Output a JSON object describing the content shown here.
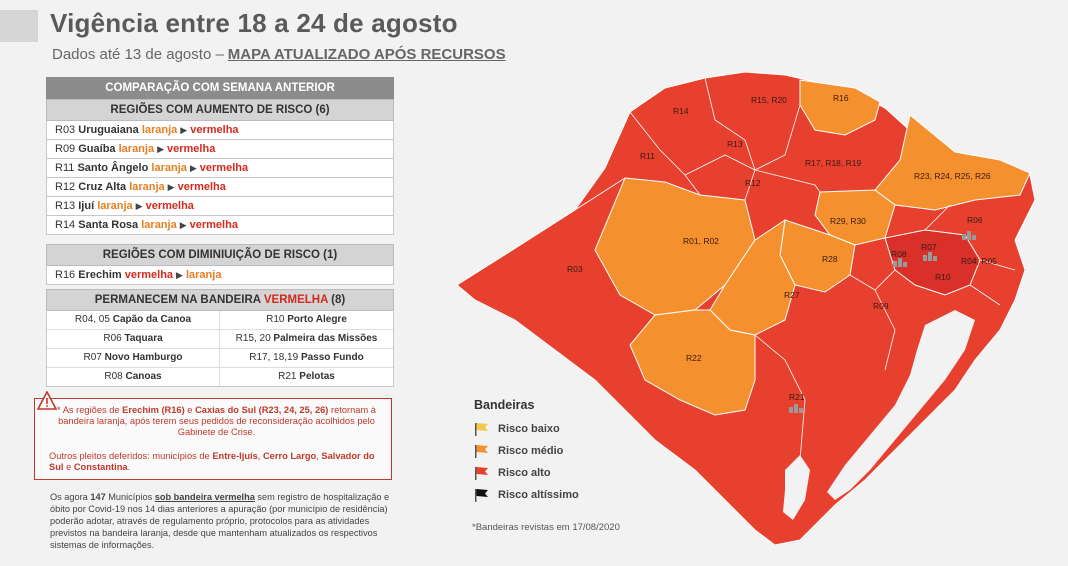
{
  "title": "Vigência entre 18 a 24 de agosto",
  "subtitle": {
    "prefix": "Dados até 13 de agosto –",
    "link": "MAPA ATUALIZADO APÓS RECURSOS"
  },
  "colors": {
    "laranja": "#f5902e",
    "vermelha": "#e8402e",
    "amarelo": "#f2c94c",
    "preto": "#111111"
  },
  "comparison": {
    "header": "COMPARAÇÃO COM SEMANA ANTERIOR",
    "increase_header": "REGIÕES COM AUMENTO DE RISCO (6)",
    "increase_rows": [
      {
        "code": "R03",
        "name": "Uruguaiana",
        "from": "laranja",
        "to": "vermelha"
      },
      {
        "code": "R09",
        "name": "Guaíba",
        "from": "laranja",
        "to": "vermelha"
      },
      {
        "code": "R11",
        "name": "Santo Ângelo",
        "from": "laranja",
        "to": "vermelha"
      },
      {
        "code": "R12",
        "name": "Cruz Alta",
        "from": "laranja",
        "to": "vermelha"
      },
      {
        "code": "R13",
        "name": "Ijuí",
        "from": "laranja",
        "to": "vermelha"
      },
      {
        "code": "R14",
        "name": "Santa Rosa",
        "from": "laranja",
        "to": "vermelha"
      }
    ],
    "decrease_header": "REGIÕES COM DIMINIUIÇÃO DE RISCO (1)",
    "decrease_rows": [
      {
        "code": "R16",
        "name": "Erechim",
        "from": "vermelha",
        "to": "laranja"
      }
    ],
    "remain_header_prefix": "PERMANECEM NA BANDEIRA",
    "remain_header_highlight": "VERMELHA",
    "remain_header_suffix": "(8)",
    "remain_cells": [
      {
        "code": "R04, 05",
        "name": "Capão da Canoa"
      },
      {
        "code": "R10",
        "name": "Porto Alegre"
      },
      {
        "code": "R06",
        "name": "Taquara"
      },
      {
        "code": "R15, 20",
        "name": "Palmeira das Missões"
      },
      {
        "code": "R07",
        "name": "Novo Hamburgo"
      },
      {
        "code": "R17, 18,19",
        "name": "Passo Fundo"
      },
      {
        "code": "R08",
        "name": "Canoas"
      },
      {
        "code": "R21",
        "name": "Pelotas"
      }
    ]
  },
  "note": {
    "p1_a": "* As regiões de",
    "p1_b": "Erechim (R16)",
    "p1_c": "e",
    "p1_d": "Caxias do Sul (R23, 24, 25, 26)",
    "p1_e": "retornam à bandeira laranja, após terem seus pedidos de reconsideração acolhidos pelo Gabinete de Crise.",
    "p2_a": "Outros pleitos deferidos: municípios de",
    "p2_b": "Entre-Ijuís",
    "p2_c": ",",
    "p2_d": "Cerro Largo",
    "p2_e": ",",
    "p2_f": "Salvador do Sul",
    "p2_g": "e",
    "p2_h": "Constantina",
    "p2_i": "."
  },
  "bottom": {
    "a": "Os agora",
    "b": "147",
    "c": "Municípios",
    "d": "sob bandeira vermelha",
    "e": "sem registro de hospitalização e óbito por Covid-19 nos 14 dias anteriores a apuração (por município de residência) poderão adotar, através de regulamento próprio, protocolos para as atividades previstos na bandeira laranja, desde que mantenham atualizados os respectivos sistemas de informações."
  },
  "legend": {
    "title": "Bandeiras",
    "items": [
      {
        "label": "Risco baixo",
        "color": "#f2c94c"
      },
      {
        "label": "Risco médio",
        "color": "#f5902e"
      },
      {
        "label": "Risco alto",
        "color": "#e8402e"
      },
      {
        "label": "Risco altíssimo",
        "color": "#111111"
      }
    ]
  },
  "footnote": "*Bandeiras revistas em 17/08/2020",
  "map_labels": [
    "R14",
    "R15, R20",
    "R16",
    "R11",
    "R13",
    "R17, R18, R19",
    "R12",
    "R23, R24, R25, R26",
    "R06",
    "R29, R30",
    "R01, R02",
    "R08",
    "R07",
    "R04, R05",
    "R03",
    "R28",
    "R10",
    "R27",
    "R09",
    "R22",
    "R21"
  ]
}
